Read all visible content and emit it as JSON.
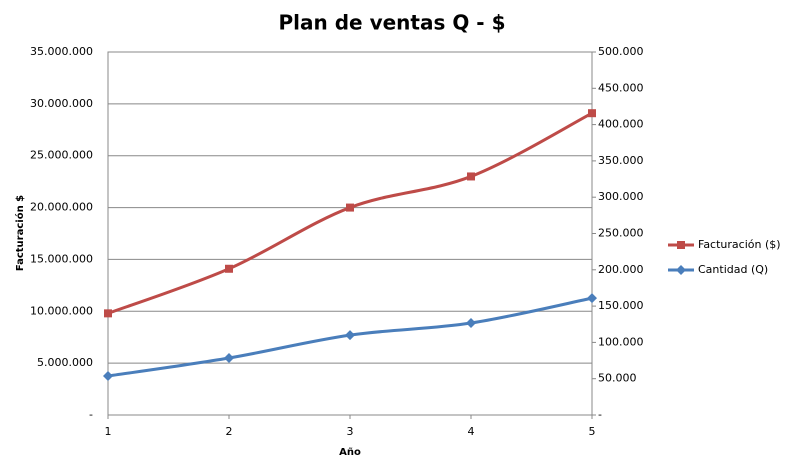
{
  "chart_data": {
    "type": "line",
    "title": "Plan de ventas Q - $",
    "x_label": "Año",
    "y_label": "Facturación  $",
    "x": [
      1,
      2,
      3,
      4,
      5
    ],
    "xlim": [
      1,
      5
    ],
    "xticks": [
      1,
      2,
      3,
      4,
      5
    ],
    "ylim": [
      0,
      35000000
    ],
    "yticks": [
      {
        "value": 0,
        "label": "-"
      },
      {
        "value": 5000000,
        "label": "5.000.000"
      },
      {
        "value": 10000000,
        "label": "10.000.000"
      },
      {
        "value": 15000000,
        "label": "15.000.000"
      },
      {
        "value": 20000000,
        "label": "20.000.000"
      },
      {
        "value": 25000000,
        "label": "25.000.000"
      },
      {
        "value": 30000000,
        "label": "30.000.000"
      },
      {
        "value": 35000000,
        "label": "35.000.000"
      }
    ],
    "y2lim": [
      0,
      500000
    ],
    "y2ticks": [
      {
        "value": 0,
        "label": "-"
      },
      {
        "value": 50000,
        "label": "50.000"
      },
      {
        "value": 100000,
        "label": "100.000"
      },
      {
        "value": 150000,
        "label": "150.000"
      },
      {
        "value": 200000,
        "label": "200.000"
      },
      {
        "value": 250000,
        "label": "250.000"
      },
      {
        "value": 300000,
        "label": "300.000"
      },
      {
        "value": 350000,
        "label": "350.000"
      },
      {
        "value": 400000,
        "label": "400.000"
      },
      {
        "value": 450000,
        "label": "450.000"
      },
      {
        "value": 500000,
        "label": "500.000"
      }
    ],
    "grid": true,
    "legend": "right",
    "series": [
      {
        "name": "Facturación ($)",
        "color": "#be4b48",
        "marker": "square",
        "values": [
          9800000,
          14100000,
          20000000,
          23000000,
          29100000
        ]
      },
      {
        "name": "Cantidad (Q)",
        "color": "#4a7ebb",
        "marker": "diamond",
        "axis": "y2",
        "values": [
          53700,
          78500,
          110000,
          126700,
          161000
        ]
      }
    ]
  }
}
